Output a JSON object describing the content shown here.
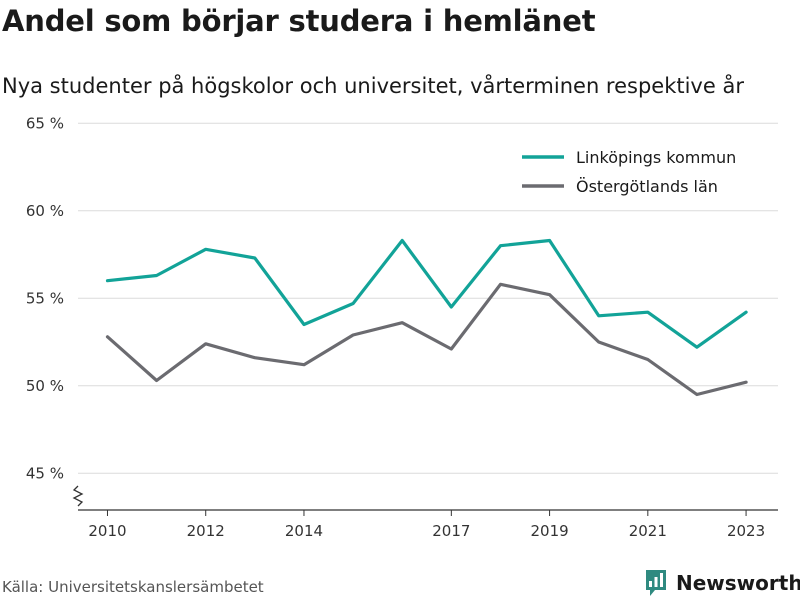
{
  "colors": {
    "linkoping": "#12a398",
    "ostergotland": "#6b6b70",
    "grid": "#dcdcdc",
    "axis": "#333333",
    "brand": "#2f8a80"
  },
  "chart_data": {
    "type": "line",
    "title": "Andel som börjar studera i hemlänet",
    "subtitle": "Nya studenter på högskolor och universitet, vårterminen respektive år",
    "x": [
      2010,
      2011,
      2012,
      2013,
      2014,
      2015,
      2016,
      2017,
      2018,
      2019,
      2020,
      2021,
      2022,
      2023
    ],
    "x_tick_values": [
      2010,
      2012,
      2014,
      2017,
      2019,
      2021,
      2023
    ],
    "x_tick_labels": [
      "2010",
      "2012",
      "2014",
      "2017",
      "2019",
      "2021",
      "2023"
    ],
    "y_tick_values": [
      45,
      50,
      55,
      60,
      65
    ],
    "y_tick_labels": [
      "45 %",
      "50 %",
      "55 %",
      "60 %",
      "65 %"
    ],
    "xlim": [
      2009.4,
      2023.65
    ],
    "ylim": [
      42.9,
      65.3
    ],
    "axis_break": true,
    "grid": true,
    "legend_position": "top-right",
    "series": [
      {
        "name": "Linköpings kommun",
        "color": "#12a398",
        "values": [
          56.0,
          56.3,
          57.8,
          57.3,
          53.5,
          54.7,
          58.3,
          54.5,
          58.0,
          58.3,
          54.0,
          54.2,
          52.2,
          54.2
        ]
      },
      {
        "name": "Östergötlands län",
        "color": "#6b6b70",
        "values": [
          52.8,
          50.3,
          52.4,
          51.6,
          51.2,
          52.9,
          53.6,
          52.1,
          55.8,
          55.2,
          52.5,
          51.5,
          49.5,
          50.2
        ]
      }
    ]
  },
  "footer": {
    "source": "Källa: Universitetskanslersämbetet",
    "brand": "Newsworthy",
    "brand_icon": "newsworthy-logo-icon"
  }
}
